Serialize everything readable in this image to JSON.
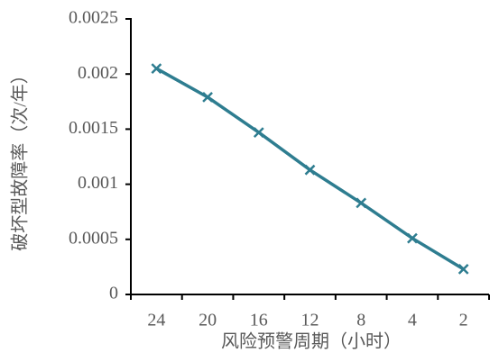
{
  "chart_data": {
    "type": "line",
    "x_label": "风险预警周期（小时）",
    "y_label": "破坏型故障率（次/年）",
    "categories": [
      "24",
      "20",
      "16",
      "12",
      "8",
      "4",
      "2"
    ],
    "series": [
      {
        "name": "破坏型故障率",
        "color": "#2e7d90",
        "values": [
          0.00205,
          0.00179,
          0.00147,
          0.00113,
          0.00083,
          0.00051,
          0.00023
        ]
      }
    ],
    "ylim": [
      0,
      0.0025
    ],
    "yticks": [
      0,
      0.0005,
      0.001,
      0.0015,
      0.002,
      0.0025
    ]
  }
}
